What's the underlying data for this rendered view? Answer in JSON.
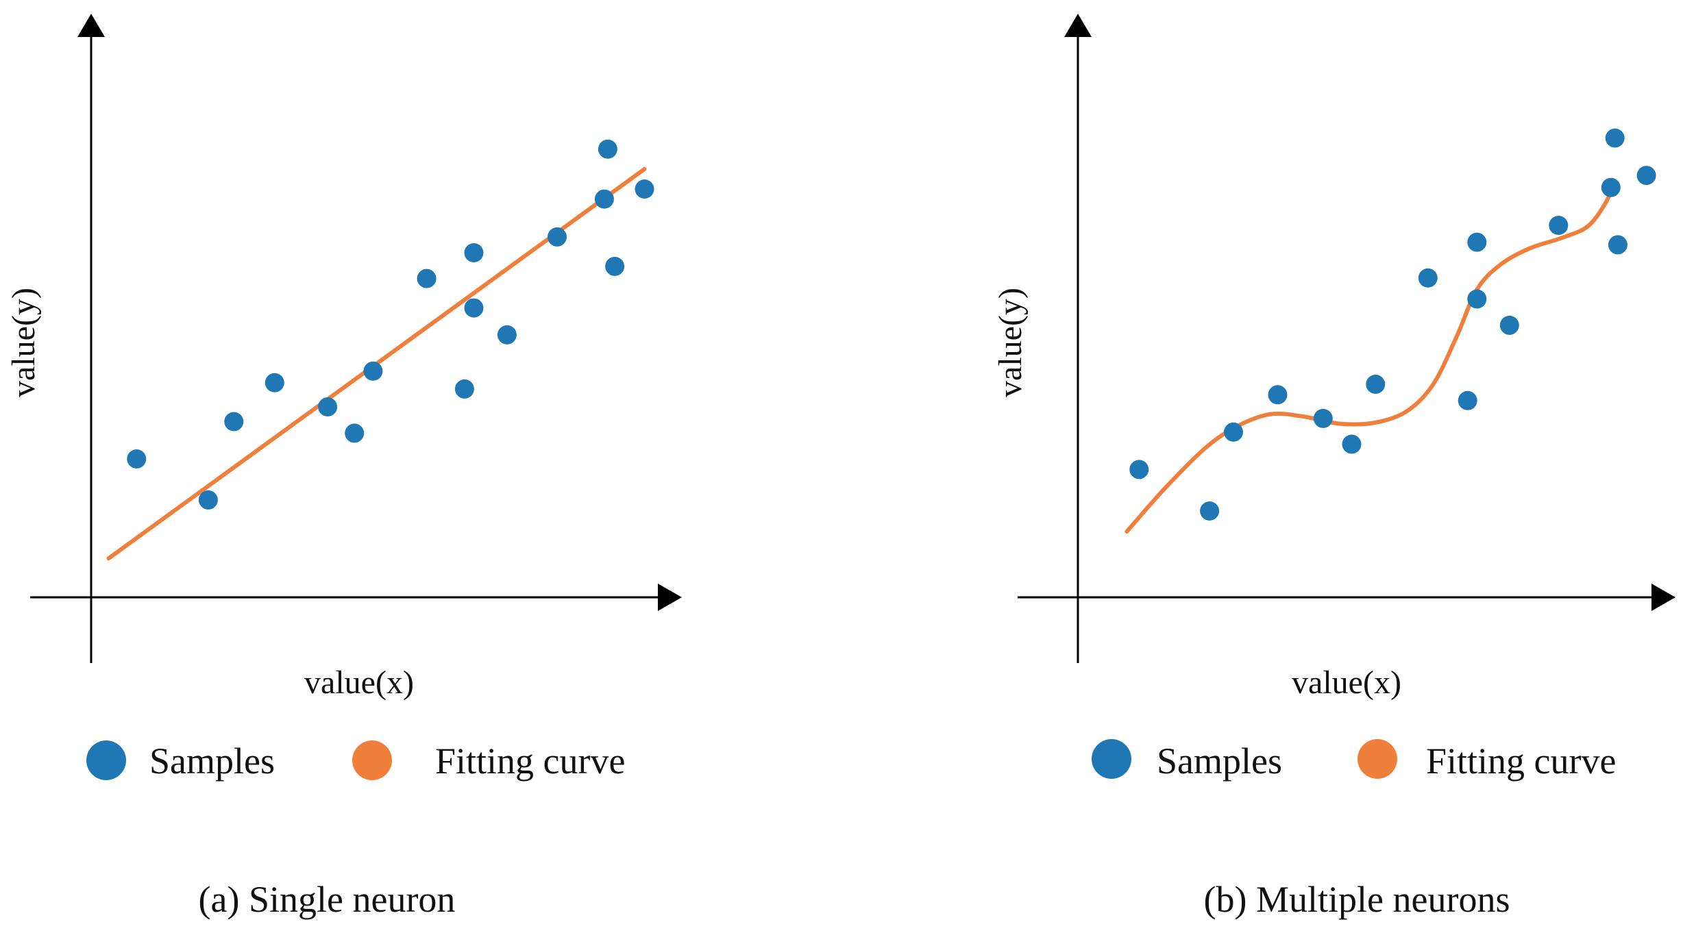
{
  "colors": {
    "samples": "#1F77B4",
    "fitting_curve": "#F07F3C",
    "axis": "#000000"
  },
  "chart_data": [
    {
      "type": "scatter",
      "caption": "(a) Single neuron",
      "xlabel": "value(x)",
      "ylabel": "value(y)",
      "xlim": [
        0,
        10
      ],
      "ylim": [
        0,
        10
      ],
      "grid": false,
      "legend": {
        "placement": "bottom",
        "entries": [
          "Samples",
          "Fitting curve"
        ]
      },
      "series": [
        {
          "name": "Samples",
          "kind": "scatter",
          "points": [
            [
              0.78,
              2.63
            ],
            [
              2.01,
              1.85
            ],
            [
              2.45,
              3.34
            ],
            [
              3.15,
              4.08
            ],
            [
              4.06,
              3.62
            ],
            [
              4.52,
              3.12
            ],
            [
              4.84,
              4.3
            ],
            [
              5.76,
              6.06
            ],
            [
              6.41,
              3.96
            ],
            [
              6.57,
              5.5
            ],
            [
              6.57,
              6.55
            ],
            [
              7.14,
              4.99
            ],
            [
              8.0,
              6.85
            ],
            [
              8.81,
              7.57
            ],
            [
              8.87,
              8.52
            ],
            [
              8.99,
              6.29
            ],
            [
              9.5,
              7.76
            ]
          ]
        },
        {
          "name": "Fitting curve",
          "kind": "line",
          "points": [
            [
              0.3,
              0.74
            ],
            [
              9.5,
              8.14
            ]
          ]
        }
      ]
    },
    {
      "type": "scatter",
      "caption": "(b) Multiple neurons",
      "xlabel": "value(x)",
      "ylabel": "value(y)",
      "xlim": [
        0,
        10
      ],
      "ylim": [
        0,
        10
      ],
      "grid": false,
      "legend": {
        "placement": "bottom",
        "entries": [
          "Samples",
          "Fitting curve"
        ]
      },
      "series": [
        {
          "name": "Samples",
          "kind": "scatter",
          "points": [
            [
              1.05,
              2.43
            ],
            [
              2.26,
              1.64
            ],
            [
              2.67,
              3.14
            ],
            [
              3.43,
              3.85
            ],
            [
              4.21,
              3.4
            ],
            [
              4.7,
              2.91
            ],
            [
              5.11,
              4.05
            ],
            [
              6.01,
              6.07
            ],
            [
              6.69,
              3.74
            ],
            [
              6.85,
              6.75
            ],
            [
              6.85,
              5.67
            ],
            [
              7.41,
              5.17
            ],
            [
              8.25,
              7.07
            ],
            [
              9.15,
              7.79
            ],
            [
              9.27,
              6.7
            ],
            [
              9.22,
              8.73
            ],
            [
              9.76,
              8.02
            ]
          ]
        },
        {
          "name": "Fitting curve",
          "kind": "line",
          "points": [
            [
              0.84,
              1.25
            ],
            [
              1.5,
              2.08
            ],
            [
              2.2,
              2.85
            ],
            [
              2.75,
              3.26
            ],
            [
              3.3,
              3.48
            ],
            [
              3.85,
              3.44
            ],
            [
              4.5,
              3.3
            ],
            [
              5.1,
              3.32
            ],
            [
              5.65,
              3.54
            ],
            [
              6.1,
              4.05
            ],
            [
              6.5,
              4.95
            ],
            [
              6.85,
              5.85
            ],
            [
              7.25,
              6.32
            ],
            [
              7.75,
              6.63
            ],
            [
              8.3,
              6.83
            ],
            [
              8.75,
              7.05
            ],
            [
              9.05,
              7.48
            ],
            [
              9.22,
              7.9
            ]
          ]
        }
      ]
    }
  ]
}
